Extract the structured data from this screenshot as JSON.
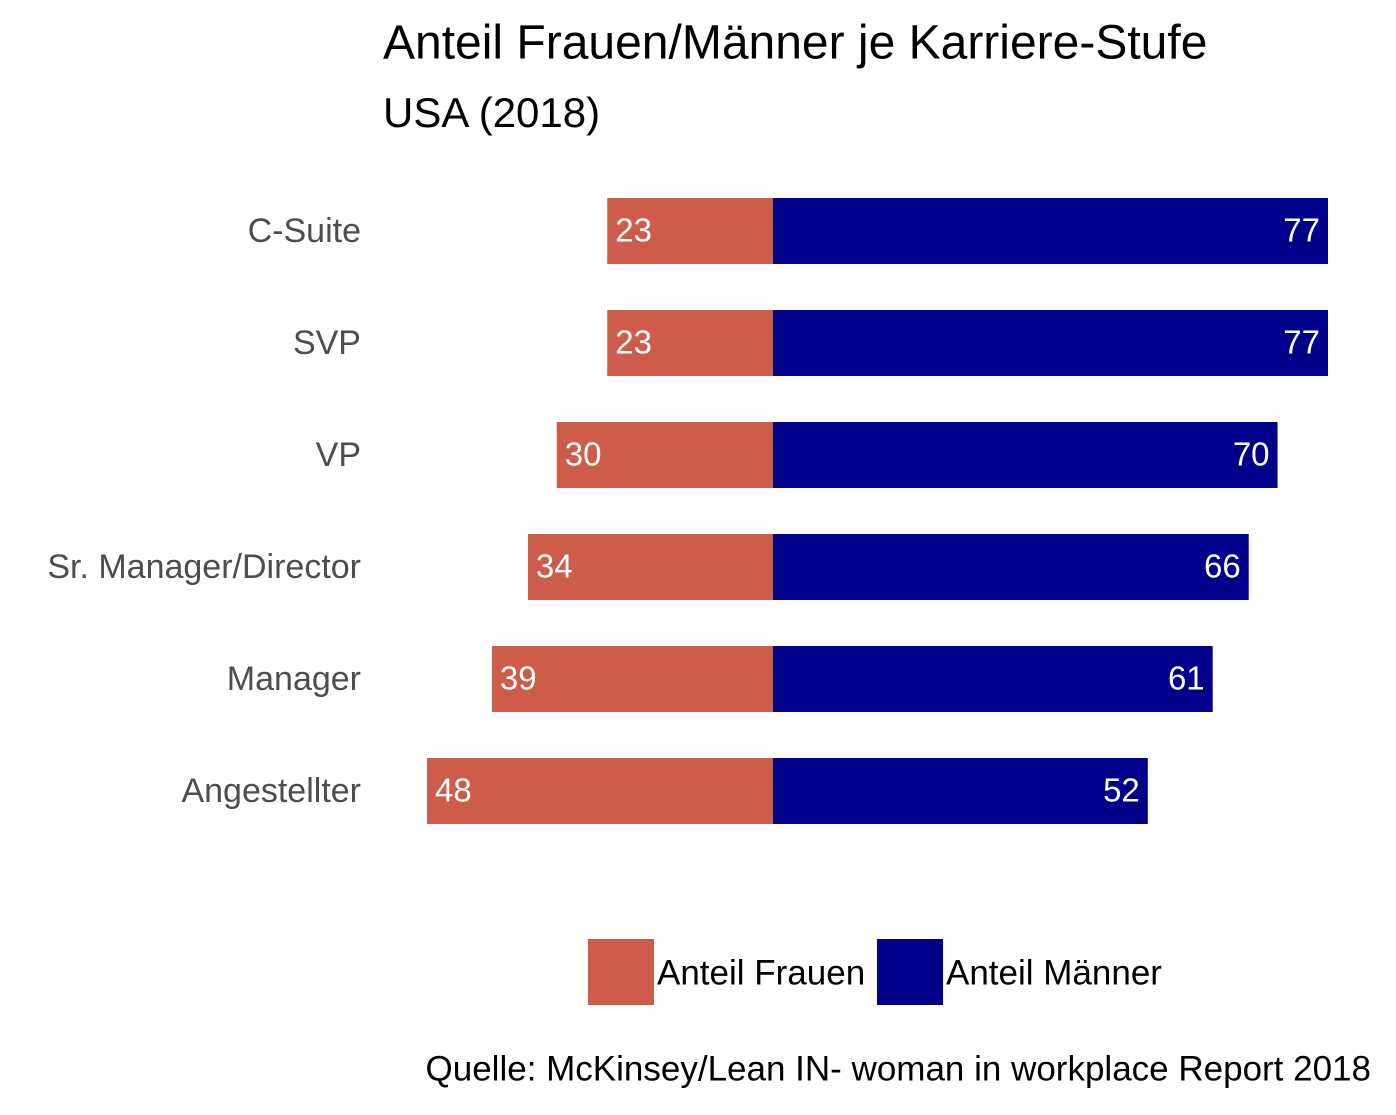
{
  "chart_data": {
    "type": "diverging_bar",
    "title": "Anteil Frauen/Männer je Karriere-Stufe",
    "subtitle": "USA (2018)",
    "categories": [
      "C-Suite",
      "SVP",
      "VP",
      "Sr. Manager/Director",
      "Manager",
      "Angestellter"
    ],
    "series": [
      {
        "name": "Anteil Frauen",
        "color": "#cd5c4a",
        "values": [
          23,
          23,
          30,
          34,
          39,
          48
        ]
      },
      {
        "name": "Anteil Männer",
        "color": "#00008b",
        "values": [
          77,
          77,
          70,
          66,
          61,
          52
        ]
      }
    ],
    "source": "Quelle: McKinsey/Lean IN- woman in workplace Report 2018"
  }
}
